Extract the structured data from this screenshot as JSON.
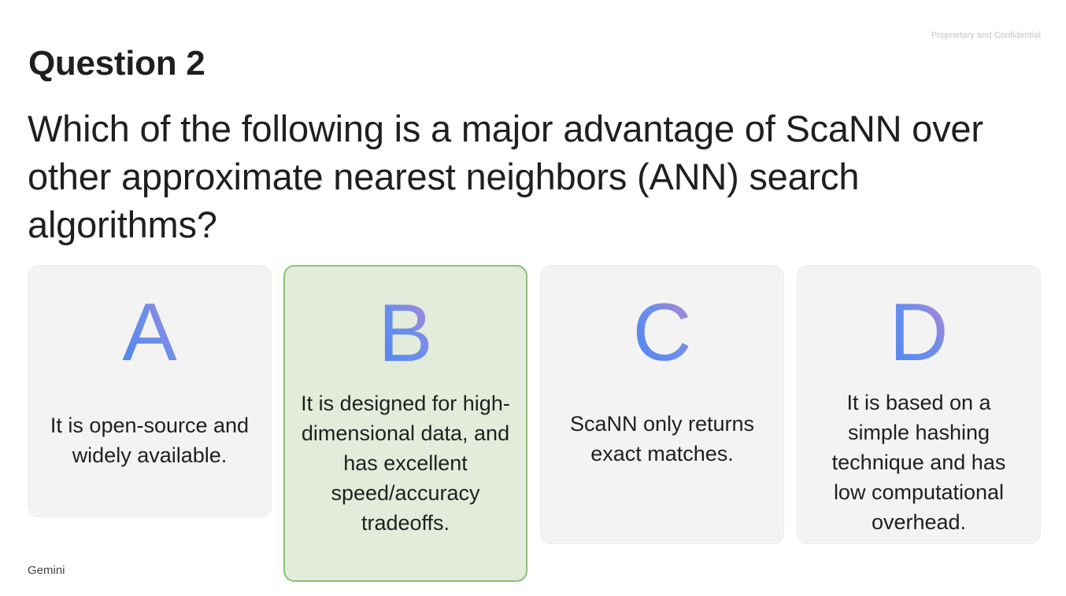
{
  "confidential_label": "Proprietary and Confidential",
  "heading": "Question 2",
  "question": "Which of the following is a major advantage of ScaNN over other approximate nearest neighbors (ANN) search algorithms?",
  "options": [
    {
      "letter": "A",
      "text": "It is open-source and widely available.",
      "selected": false
    },
    {
      "letter": "B",
      "text": "It is designed for high-dimensional data, and has excellent speed/accuracy tradeoffs.",
      "selected": true
    },
    {
      "letter": "C",
      "text": "ScaNN only returns exact matches.",
      "selected": false
    },
    {
      "letter": "D",
      "text": "It is based on a simple hashing technique and has low computational overhead.",
      "selected": false
    }
  ],
  "footer": "Gemini",
  "colors": {
    "letter_gradient_start": "#4d86f0",
    "letter_gradient_end": "#c784c9",
    "selected_border": "#8cc07b",
    "selected_background": "#e3ecdb",
    "card_background": "#f3f3f3"
  }
}
